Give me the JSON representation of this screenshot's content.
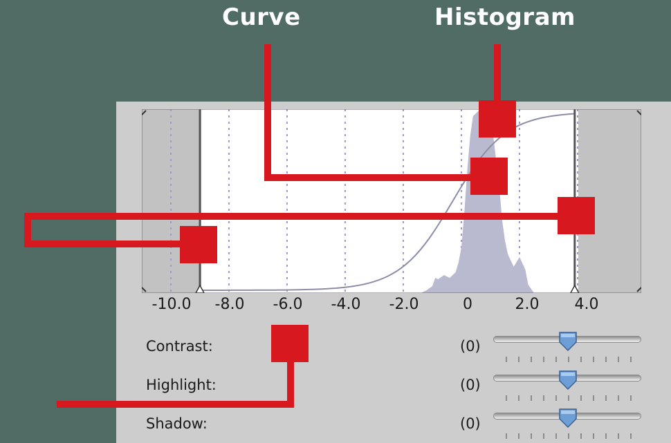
{
  "annotations": {
    "curve_label": "Curve",
    "histogram_label": "Histogram"
  },
  "colors": {
    "background": "#516b65",
    "panel": "#cdcdcd",
    "annotation": "#d7181f",
    "curve": "#8c8ca8",
    "histogram_fill": "#b9b9d0",
    "clipped_region": "#c2c2c2"
  },
  "graph": {
    "axis_ticks": [
      "-10.0",
      "-8.0",
      "-6.0",
      "-4.0",
      "-2.0",
      "0",
      "2.0",
      "4.0"
    ],
    "black_point": -9.0,
    "white_point": 3.9,
    "curve_type": "sigmoid"
  },
  "controls": [
    {
      "label": "Contrast:",
      "value": "(0)",
      "level": 0.5
    },
    {
      "label": "Highlight:",
      "value": "(0)",
      "level": 0.5
    },
    {
      "label": "Shadow:",
      "value": "(0)",
      "level": 0.5
    }
  ]
}
